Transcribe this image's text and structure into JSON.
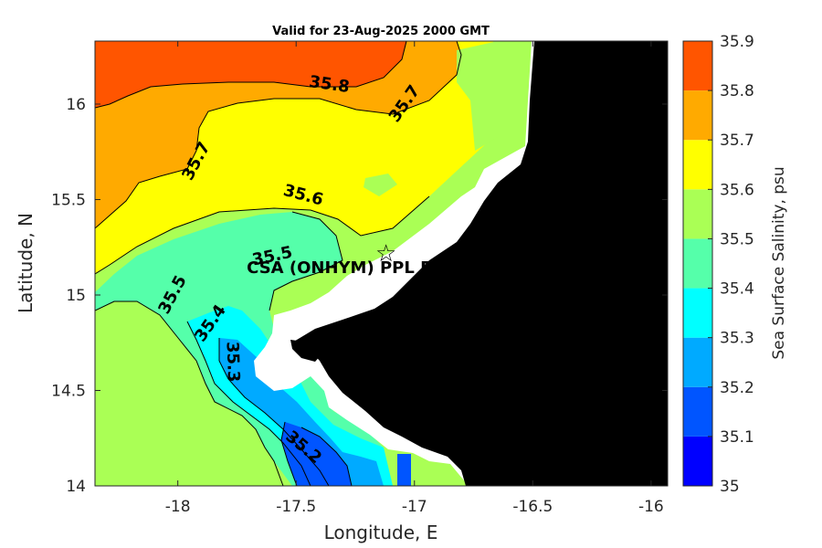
{
  "title": "Valid for 23-Aug-2025 2000 GMT",
  "x_axis": {
    "label": "Longitude, E",
    "range": [
      -18.35,
      -15.93
    ],
    "ticks": [
      -18,
      -17.5,
      -17,
      -16.5,
      -16
    ],
    "tick_labels": [
      "-18",
      "-17.5",
      "-17",
      "-16.5",
      "-16"
    ]
  },
  "y_axis": {
    "label": "Latitude, N",
    "range": [
      14,
      16.33
    ],
    "ticks": [
      14,
      14.5,
      15,
      15.5,
      16
    ],
    "tick_labels": [
      "14",
      "14.5",
      "15",
      "15.5",
      "16"
    ]
  },
  "colorbar": {
    "label": "Sea Surface Salinity, psu",
    "levels": [
      "35",
      "35.1",
      "35.2",
      "35.3",
      "35.4",
      "35.5",
      "35.6",
      "35.7",
      "35.8",
      "35.9"
    ],
    "colors": [
      "#0000ff",
      "#0055ff",
      "#00aaff",
      "#00ffff",
      "#55ffaa",
      "#aaff55",
      "#ffff00",
      "#ffaa00",
      "#ff5500"
    ]
  },
  "land_color": "#000000",
  "masked_color": "#ffffff",
  "site": {
    "label": "CSA (ONHYM) PPL EE",
    "marker": "star-icon",
    "lon": -17.12,
    "lat": 15.22
  },
  "contour_labels": [
    {
      "text": "35.8",
      "lon": -17.36,
      "lat": 16.1,
      "angle": 8
    },
    {
      "text": "35.7",
      "lon": -17.04,
      "lat": 16.0,
      "angle": -55
    },
    {
      "text": "35.7",
      "lon": -17.92,
      "lat": 15.7,
      "angle": -62
    },
    {
      "text": "35.6",
      "lon": -17.47,
      "lat": 15.52,
      "angle": 15
    },
    {
      "text": "35.5",
      "lon": -17.6,
      "lat": 15.2,
      "angle": -12
    },
    {
      "text": "35.5",
      "lon": -18.02,
      "lat": 15.0,
      "angle": -62
    },
    {
      "text": "35.4",
      "lon": -17.86,
      "lat": 14.85,
      "angle": -55
    },
    {
      "text": "35.3",
      "lon": -17.77,
      "lat": 14.65,
      "angle": 88
    },
    {
      "text": "35.2",
      "lon": -17.47,
      "lat": 14.2,
      "angle": 40
    }
  ]
}
